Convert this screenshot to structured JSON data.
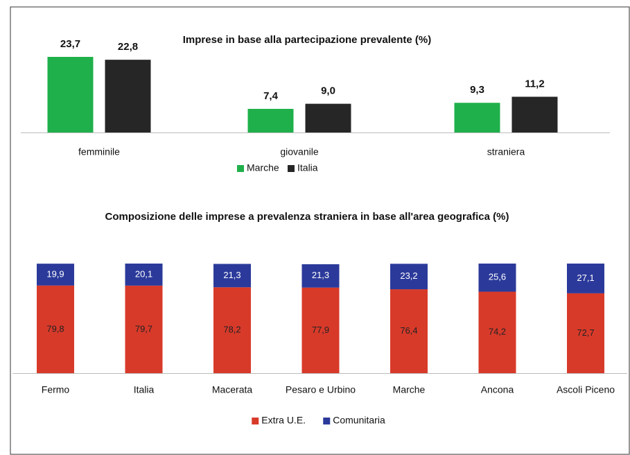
{
  "chart_data": [
    {
      "type": "bar",
      "title": "Imprese in base alla partecipazione prevalente (%)",
      "categories": [
        "femminile",
        "giovanile",
        "straniera"
      ],
      "series": [
        {
          "name": "Marche",
          "color": "#1fb04b",
          "values": [
            23.7,
            7.4,
            9.3
          ],
          "value_labels": [
            "23,7",
            "7,4",
            "9,3"
          ]
        },
        {
          "name": "Italia",
          "color": "#262626",
          "values": [
            22.8,
            9.0,
            11.2
          ],
          "value_labels": [
            "22,8",
            "9,0",
            "11,2"
          ]
        }
      ]
    },
    {
      "type": "stacked_bar",
      "title": "Composizione delle imprese a prevalenza straniera in base all'area geografica (%)",
      "categories": [
        "Fermo",
        "Italia",
        "Macerata",
        "Pesaro e Urbino",
        "Marche",
        "Ancona",
        "Ascoli Piceno"
      ],
      "series": [
        {
          "name": "Extra U.E.",
          "color": "#d83a2a",
          "values": [
            79.8,
            79.7,
            78.2,
            77.9,
            76.4,
            74.2,
            72.7
          ],
          "value_labels": [
            "79,8",
            "79,7",
            "78,2",
            "77,9",
            "76,4",
            "74,2",
            "72,7"
          ]
        },
        {
          "name": "Comunitaria",
          "color": "#2b3a9a",
          "values": [
            19.9,
            20.1,
            21.3,
            21.3,
            23.2,
            25.6,
            27.1
          ],
          "value_labels": [
            "19,9",
            "20,1",
            "21,3",
            "21,3",
            "23,2",
            "25,6",
            "27,1"
          ]
        }
      ]
    }
  ]
}
